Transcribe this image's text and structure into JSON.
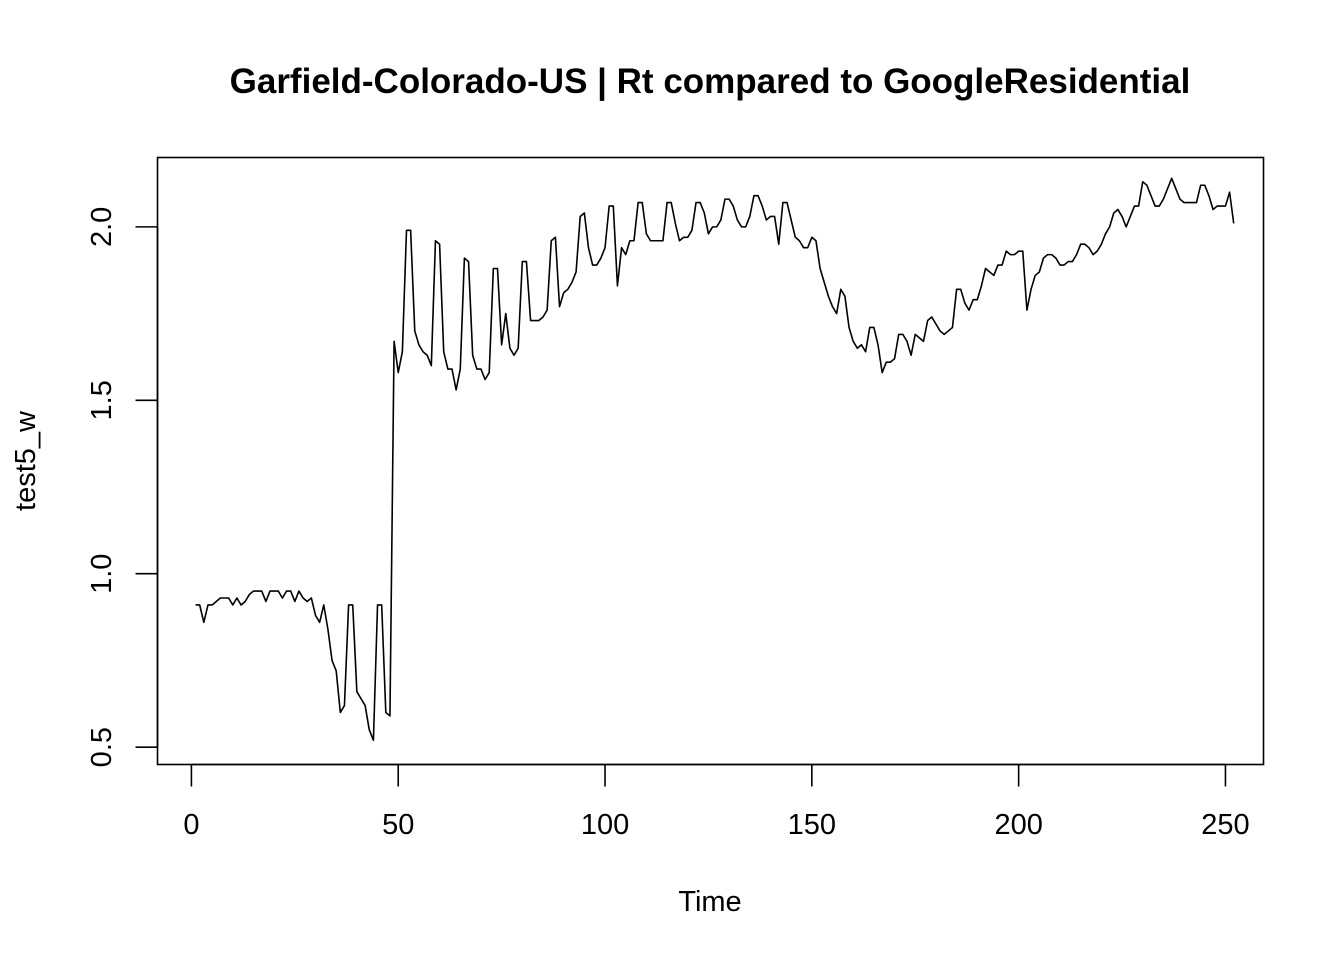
{
  "chart_data": {
    "type": "line",
    "title": "Garfield-Colorado-US | Rt compared to GoogleResidential",
    "xlabel": "Time",
    "ylabel": "test5_w",
    "xlim": [
      -8.2,
      259.2
    ],
    "ylim": [
      0.45,
      2.2
    ],
    "x_ticks": [
      0,
      50,
      100,
      150,
      200,
      250
    ],
    "y_ticks": [
      0.5,
      1.0,
      1.5,
      2.0
    ],
    "x_tick_labels": [
      "0",
      "50",
      "100",
      "150",
      "200",
      "250"
    ],
    "y_tick_labels": [
      "0.5",
      "1.0",
      "1.5",
      "2.0"
    ],
    "grid": false,
    "line_color": "#000000",
    "series": [
      {
        "x_start": 1,
        "values": [
          0.91,
          0.91,
          0.86,
          0.91,
          0.91,
          0.92,
          0.93,
          0.93,
          0.93,
          0.91,
          0.93,
          0.91,
          0.92,
          0.94,
          0.95,
          0.95,
          0.95,
          0.92,
          0.95,
          0.95,
          0.95,
          0.93,
          0.95,
          0.95,
          0.92,
          0.95,
          0.93,
          0.92,
          0.93,
          0.88,
          0.86,
          0.91,
          0.84,
          0.75,
          0.72,
          0.6,
          0.62,
          0.91,
          0.91,
          0.66,
          0.64,
          0.62,
          0.55,
          0.52,
          0.91,
          0.91,
          0.6,
          0.59,
          1.67,
          1.58,
          1.64,
          1.99,
          1.99,
          1.7,
          1.66,
          1.64,
          1.63,
          1.6,
          1.96,
          1.95,
          1.64,
          1.59,
          1.59,
          1.53,
          1.59,
          1.91,
          1.9,
          1.63,
          1.59,
          1.59,
          1.56,
          1.58,
          1.88,
          1.88,
          1.66,
          1.75,
          1.65,
          1.63,
          1.65,
          1.9,
          1.9,
          1.73,
          1.73,
          1.73,
          1.74,
          1.76,
          1.96,
          1.97,
          1.77,
          1.81,
          1.82,
          1.84,
          1.87,
          2.03,
          2.04,
          1.94,
          1.89,
          1.89,
          1.91,
          1.94,
          2.06,
          2.06,
          1.83,
          1.94,
          1.92,
          1.96,
          1.96,
          2.07,
          2.07,
          1.98,
          1.96,
          1.96,
          1.96,
          1.96,
          2.07,
          2.07,
          2.01,
          1.96,
          1.97,
          1.97,
          1.99,
          2.07,
          2.07,
          2.04,
          1.98,
          2.0,
          2.0,
          2.02,
          2.08,
          2.08,
          2.06,
          2.02,
          2.0,
          2.0,
          2.03,
          2.09,
          2.09,
          2.06,
          2.02,
          2.03,
          2.03,
          1.95,
          2.07,
          2.07,
          2.02,
          1.97,
          1.96,
          1.94,
          1.94,
          1.97,
          1.96,
          1.88,
          1.84,
          1.8,
          1.77,
          1.75,
          1.82,
          1.8,
          1.71,
          1.67,
          1.65,
          1.66,
          1.64,
          1.71,
          1.71,
          1.66,
          1.58,
          1.61,
          1.61,
          1.62,
          1.69,
          1.69,
          1.67,
          1.63,
          1.69,
          1.68,
          1.67,
          1.73,
          1.74,
          1.72,
          1.7,
          1.69,
          1.7,
          1.71,
          1.82,
          1.82,
          1.78,
          1.76,
          1.79,
          1.79,
          1.83,
          1.88,
          1.87,
          1.86,
          1.89,
          1.89,
          1.93,
          1.92,
          1.92,
          1.93,
          1.93,
          1.76,
          1.82,
          1.86,
          1.87,
          1.91,
          1.92,
          1.92,
          1.91,
          1.89,
          1.89,
          1.9,
          1.9,
          1.92,
          1.95,
          1.95,
          1.94,
          1.92,
          1.93,
          1.95,
          1.98,
          2.0,
          2.04,
          2.05,
          2.03,
          2.0,
          2.03,
          2.06,
          2.06,
          2.13,
          2.12,
          2.09,
          2.06,
          2.06,
          2.08,
          2.11,
          2.14,
          2.11,
          2.08,
          2.07,
          2.07,
          2.07,
          2.07,
          2.12,
          2.12,
          2.09,
          2.05,
          2.06,
          2.06,
          2.06,
          2.1,
          2.01
        ]
      }
    ]
  }
}
